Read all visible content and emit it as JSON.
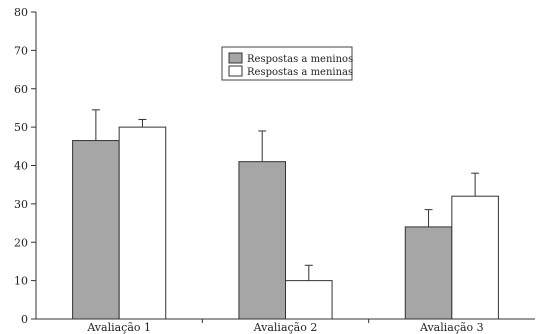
{
  "chart_data": {
    "type": "bar",
    "title": "",
    "xlabel": "",
    "ylabel": "",
    "categories": [
      "Avaliação 1",
      "Avaliação 2",
      "Avaliação 3"
    ],
    "series": [
      {
        "name": "Respostas a meninos",
        "values": [
          46.5,
          41,
          24
        ],
        "error_upper": [
          54.5,
          49,
          28.5
        ],
        "color": "#a6a6a6"
      },
      {
        "name": "Respostas a meninas",
        "values": [
          50,
          10,
          32
        ],
        "error_upper": [
          52,
          14,
          38
        ],
        "color": "#ffffff"
      }
    ],
    "ylim": [
      0,
      80
    ],
    "yticks": [
      "0",
      "10",
      "20",
      "30",
      "40",
      "50",
      "60",
      "70",
      "80"
    ],
    "grid": false,
    "legend_position": "top-center"
  }
}
